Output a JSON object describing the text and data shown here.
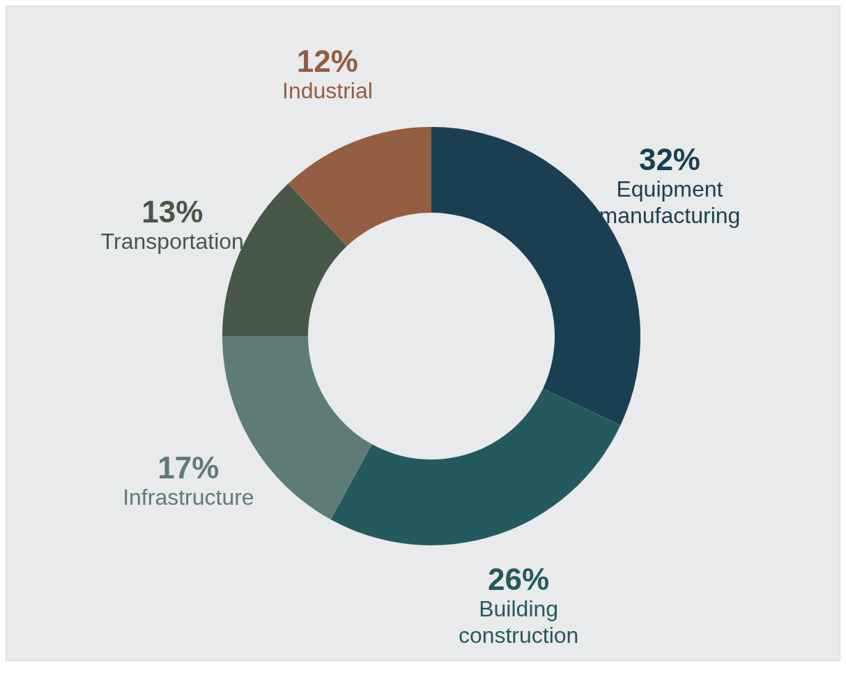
{
  "chart_data": {
    "type": "donut",
    "categories": [
      "Equipment manufacturing",
      "Building construction",
      "Infrastructure",
      "Transportation",
      "Industrial"
    ],
    "values": [
      32,
      26,
      17,
      13,
      12
    ],
    "value_labels": [
      "32%",
      "26%",
      "17%",
      "13%",
      "12%"
    ],
    "colors": [
      "#1a3f52",
      "#245a5e",
      "#5e7b78",
      "#485848",
      "#935e42"
    ]
  }
}
